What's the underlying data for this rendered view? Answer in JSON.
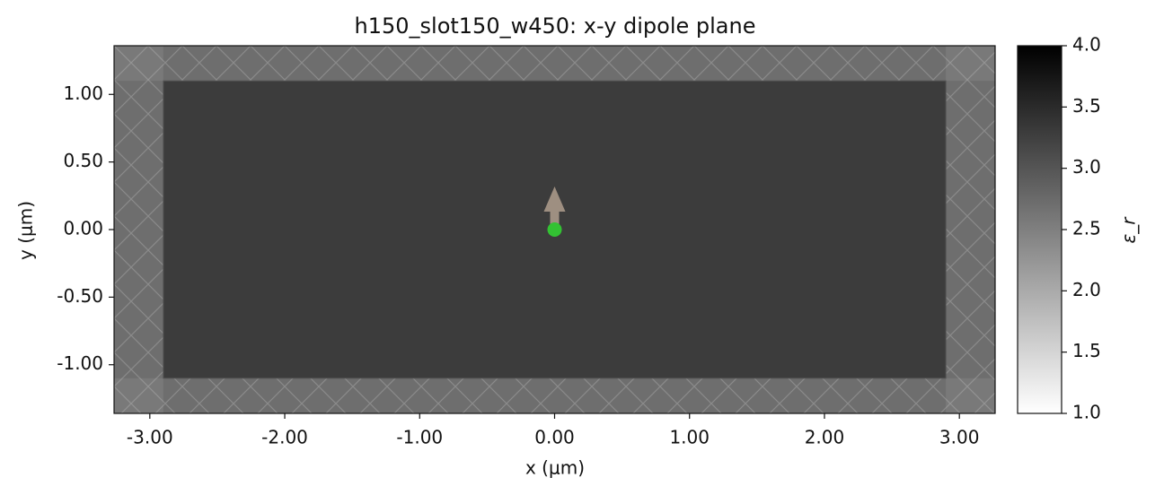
{
  "chart_data": {
    "type": "structure",
    "title": "h150_slot150_w450: x-y dipole plane",
    "x_label": "x (μm)",
    "y_label": "y (μm)",
    "xlim": [
      -3.265,
      3.265
    ],
    "ylim": [
      -1.36,
      1.36
    ],
    "xticks": [
      {
        "value": -3,
        "label": "-3.00"
      },
      {
        "value": -2,
        "label": "-2.00"
      },
      {
        "value": -1,
        "label": "-1.00"
      },
      {
        "value": 0,
        "label": "0.00"
      },
      {
        "value": 1,
        "label": "1.00"
      },
      {
        "value": 2,
        "label": "2.00"
      },
      {
        "value": 3,
        "label": "3.00"
      }
    ],
    "yticks": [
      {
        "value": -1,
        "label": "-1.00"
      },
      {
        "value": -0.5,
        "label": "-0.50"
      },
      {
        "value": 0,
        "label": "0.00"
      },
      {
        "value": 0.5,
        "label": "0.50"
      },
      {
        "value": 1,
        "label": "1.00"
      }
    ],
    "background_color": "#6e6e6e",
    "structures": [
      {
        "x": [
          -2.9,
          2.9
        ],
        "y": [
          -1.1,
          1.1
        ],
        "color": "#3c3c3c"
      }
    ],
    "source": {
      "x": 0,
      "y": 0,
      "color": "#33c233",
      "arrow_color": "#a89888"
    },
    "colorbar": {
      "label": "ε_r",
      "lim": [
        1,
        4
      ],
      "ticks": [
        {
          "value": 1,
          "label": "1.0"
        },
        {
          "value": 1.5,
          "label": "1.5"
        },
        {
          "value": 2,
          "label": "2.0"
        },
        {
          "value": 2.5,
          "label": "2.5"
        },
        {
          "value": 3,
          "label": "3.0"
        },
        {
          "value": 3.5,
          "label": "3.5"
        },
        {
          "value": 4,
          "label": "4.0"
        }
      ]
    }
  }
}
